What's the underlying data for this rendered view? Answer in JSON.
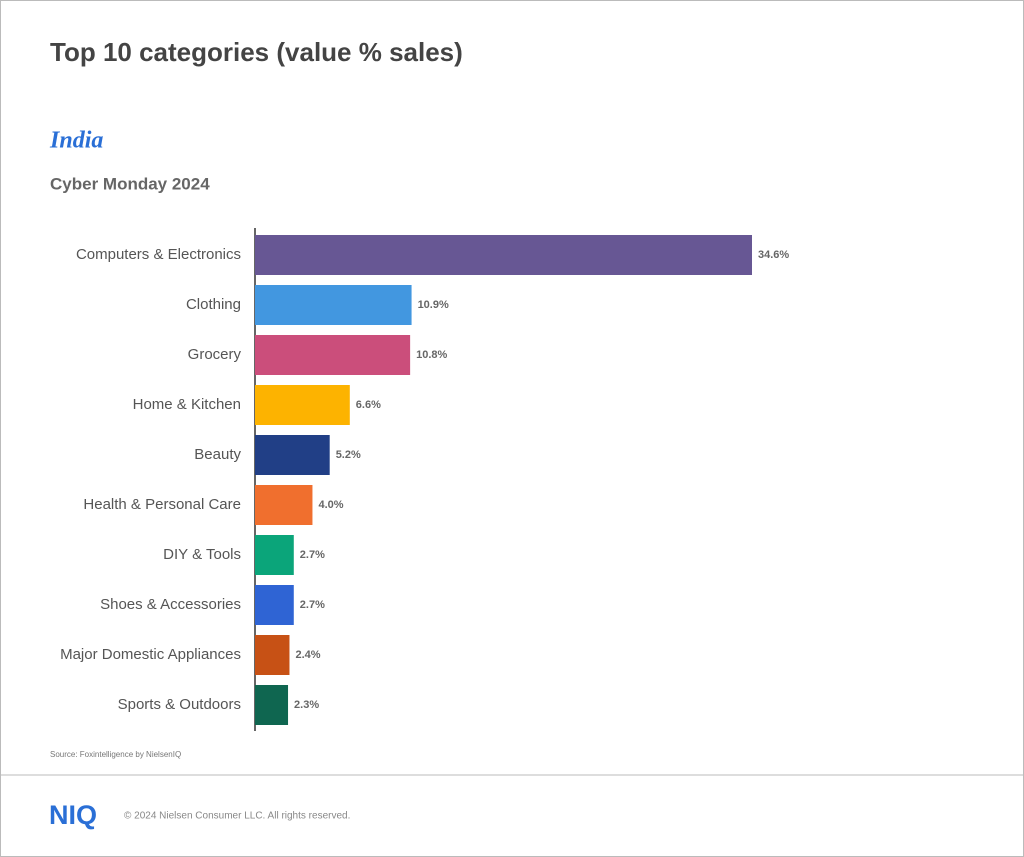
{
  "title": "Top 10 categories (value % sales)",
  "subtitle": "India",
  "chart_data": {
    "type": "bar",
    "orientation": "horizontal",
    "title": "Cyber Monday 2024",
    "categories": [
      "Computers & Electronics",
      "Clothing",
      "Grocery",
      "Home & Kitchen",
      "Beauty",
      "Health & Personal Care",
      "DIY & Tools",
      "Shoes & Accessories",
      "Major Domestic Appliances",
      "Sports & Outdoors"
    ],
    "values": [
      34.6,
      10.9,
      10.8,
      6.6,
      5.2,
      4.0,
      2.7,
      2.7,
      2.4,
      2.3
    ],
    "value_labels": [
      "34.6%",
      "10.9%",
      "10.8%",
      "6.6%",
      "5.2%",
      "4.0%",
      "2.7%",
      "2.7%",
      "2.4%",
      "2.3%"
    ],
    "colors": [
      "#675794",
      "#4297e0",
      "#cb4e7b",
      "#fdb300",
      "#213f86",
      "#f06f2e",
      "#0ba57a",
      "#2f64d4",
      "#c75115",
      "#0f6650"
    ]
  },
  "source": "Source: Foxintelligence by NielsenIQ",
  "footer": {
    "logo": "NIQ",
    "copyright": "© 2024 Nielsen Consumer LLC. All rights reserved."
  }
}
